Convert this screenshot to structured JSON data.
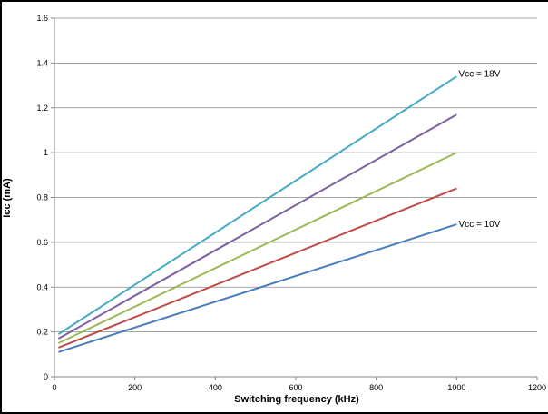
{
  "chart_data": {
    "type": "line",
    "xlabel": "Switching frequency (kHz)",
    "ylabel": "Icc (mA)",
    "xlim": [
      0,
      1200
    ],
    "ylim": [
      0,
      1.6
    ],
    "x_ticks": [
      0,
      200,
      400,
      600,
      800,
      1000,
      1200
    ],
    "y_ticks": [
      0,
      0.2,
      0.4,
      0.6,
      0.8,
      1,
      1.2,
      1.4,
      1.6
    ],
    "grid": "horizontal",
    "series": [
      {
        "color": "#4a7ebb",
        "x": [
          10,
          1000
        ],
        "y": [
          0.11,
          0.68
        ]
      },
      {
        "color": "#be4b48",
        "x": [
          10,
          1000
        ],
        "y": [
          0.13,
          0.84
        ]
      },
      {
        "color": "#98b954",
        "x": [
          10,
          1000
        ],
        "y": [
          0.15,
          1.0
        ]
      },
      {
        "color": "#7d60a0",
        "x": [
          10,
          1000
        ],
        "y": [
          0.17,
          1.17
        ]
      },
      {
        "color": "#46aac5",
        "x": [
          10,
          1000
        ],
        "y": [
          0.19,
          1.34
        ]
      }
    ],
    "annotations": [
      {
        "text": "Vcc = 18V",
        "x": 1005,
        "y": 1.35
      },
      {
        "text": "Vcc = 10V",
        "x": 1005,
        "y": 0.68
      }
    ]
  }
}
